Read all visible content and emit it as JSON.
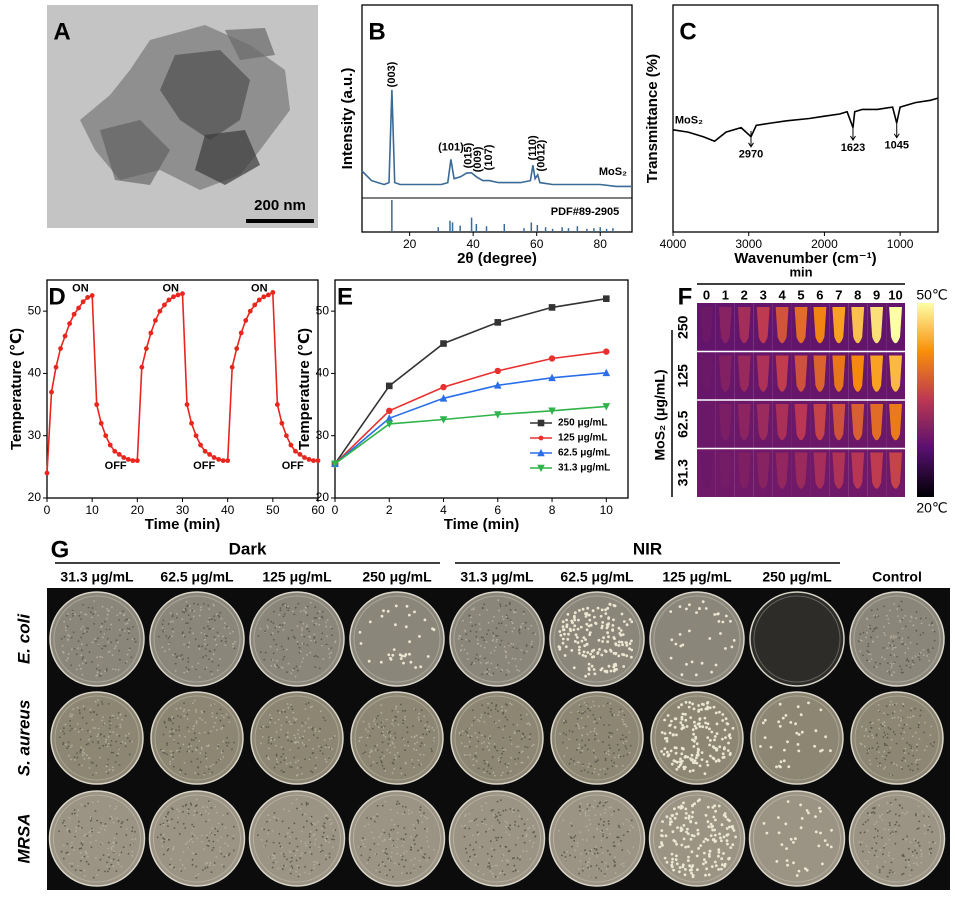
{
  "panel_labels": [
    "A",
    "B",
    "C",
    "D",
    "E",
    "F",
    "G"
  ],
  "panel_a": {
    "scale_bar": "200 nm"
  },
  "chart_data": [
    {
      "type": "line",
      "x_label": "2θ (degree)",
      "y_label": "Intensity (a.u.)",
      "xlim": [
        5,
        90
      ],
      "ylim": [
        0,
        100
      ],
      "xticks": [
        20,
        40,
        60,
        80
      ],
      "color": "#3a6a96",
      "x": [
        5,
        8,
        10,
        12,
        13.5,
        14.4,
        15.3,
        17,
        20,
        25,
        30,
        32,
        33,
        34,
        36,
        38,
        39.5,
        41,
        43,
        45,
        48,
        50,
        55,
        58,
        58.8,
        59.5,
        60.3,
        61,
        65,
        70,
        75,
        80,
        85,
        90
      ],
      "values": [
        14,
        9,
        8,
        7,
        8,
        56,
        8,
        7,
        7,
        7,
        7,
        8,
        20,
        10,
        11,
        13,
        13,
        11,
        9,
        9,
        8,
        8,
        8,
        9,
        17,
        10,
        12,
        8,
        7,
        7,
        7,
        7,
        6,
        6
      ],
      "annotations": [
        {
          "text": "(003)",
          "x": 14.4,
          "y": 64,
          "vertical": true
        },
        {
          "text": "(101)",
          "x": 33,
          "y": 26,
          "vertical": false
        },
        {
          "text": "(015)",
          "x": 38.5,
          "y": 22,
          "vertical": true
        },
        {
          "text": "(009)",
          "x": 41.5,
          "y": 20,
          "vertical": true
        },
        {
          "text": "(107)",
          "x": 45,
          "y": 21,
          "vertical": true
        },
        {
          "text": "(110)",
          "x": 58.8,
          "y": 26,
          "vertical": true
        },
        {
          "text": "(0012)",
          "x": 61.5,
          "y": 22,
          "vertical": true
        },
        {
          "text": "MoS₂",
          "x": 84,
          "y": 13.5,
          "vertical": false
        }
      ],
      "reference": {
        "name": "PDF#89-2905",
        "color": "#3a6a96",
        "x": [
          14.4,
          29,
          32.7,
          33.5,
          35.9,
          39.5,
          41,
          44.2,
          49.8,
          56,
          58.3,
          60.2,
          62.8,
          65,
          68,
          70,
          72.8,
          75.8,
          78,
          80,
          82,
          84
        ],
        "values": [
          100,
          15,
          35,
          30,
          20,
          45,
          25,
          18,
          25,
          12,
          30,
          22,
          15,
          10,
          15,
          12,
          18,
          10,
          12,
          15,
          10,
          12
        ]
      }
    },
    {
      "type": "line",
      "x_label": "Wavenumber (cm⁻¹)",
      "y_label": "Transmittance (%)",
      "xlim": [
        4000,
        500
      ],
      "ylim": [
        0,
        100
      ],
      "xticks": [
        4000,
        3000,
        2000,
        1000
      ],
      "color": "#000000",
      "x": [
        4000,
        3800,
        3600,
        3450,
        3300,
        3100,
        2970,
        2900,
        2700,
        2500,
        2200,
        2000,
        1800,
        1700,
        1623,
        1600,
        1500,
        1300,
        1100,
        1045,
        1000,
        800,
        600,
        500
      ],
      "values": [
        45,
        44,
        42,
        40,
        44,
        46,
        42,
        47,
        48,
        49,
        50,
        51,
        52,
        53,
        46,
        53,
        54,
        54,
        55,
        48,
        55,
        57,
        58,
        59
      ],
      "annotations": [
        {
          "text": "MoS₂",
          "x": 3790,
          "y": 49,
          "arrow": false
        },
        {
          "text": "2970",
          "x": 2970,
          "y": 34,
          "arrow": true
        },
        {
          "text": "1623",
          "x": 1623,
          "y": 37,
          "arrow": true
        },
        {
          "text": "1045",
          "x": 1045,
          "y": 38,
          "arrow": true
        }
      ]
    },
    {
      "type": "line",
      "x_label": "Time (min)",
      "y_label": "Temperature (℃)",
      "xlim": [
        0,
        60
      ],
      "ylim": [
        20,
        55
      ],
      "xticks": [
        0,
        10,
        20,
        30,
        40,
        50,
        60
      ],
      "yticks": [
        20,
        30,
        40,
        50
      ],
      "color": "#e8261e",
      "marker": "circle",
      "x": [
        0,
        1,
        2,
        3,
        4,
        5,
        6,
        7,
        8,
        9,
        10,
        11,
        12,
        13,
        14,
        15,
        16,
        17,
        18,
        19,
        20,
        21,
        22,
        23,
        24,
        25,
        26,
        27,
        28,
        29,
        30,
        31,
        32,
        33,
        34,
        35,
        36,
        37,
        38,
        39,
        40,
        41,
        42,
        43,
        44,
        45,
        46,
        47,
        48,
        49,
        50,
        51,
        52,
        53,
        54,
        55,
        56,
        57,
        58,
        59,
        60
      ],
      "values": [
        24,
        37,
        41,
        44,
        46,
        48,
        49.5,
        50.5,
        51.5,
        52.2,
        52.5,
        35,
        32,
        30,
        28.5,
        27.5,
        27,
        26.5,
        26.2,
        26,
        26,
        41,
        44,
        46.5,
        48.5,
        50,
        51,
        51.8,
        52.3,
        52.6,
        52.8,
        35,
        32,
        30,
        28.5,
        27.5,
        27,
        26.5,
        26.2,
        26,
        26,
        41,
        44,
        46.5,
        48.5,
        50,
        51,
        51.8,
        52.3,
        52.6,
        53,
        35,
        32,
        30,
        28.5,
        27.5,
        27,
        26.5,
        26.2,
        26,
        26
      ],
      "annotations": [
        {
          "text": "ON",
          "x": 7.4,
          "y": 53.6
        },
        {
          "text": "ON",
          "x": 27.4,
          "y": 53.6
        },
        {
          "text": "ON",
          "x": 47,
          "y": 53.6
        },
        {
          "text": "OFF",
          "x": 15.2,
          "y": 25.1
        },
        {
          "text": "OFF",
          "x": 34.8,
          "y": 25.1
        },
        {
          "text": "OFF",
          "x": 54.4,
          "y": 25.1
        }
      ]
    },
    {
      "type": "line",
      "x_label": "Time (min)",
      "y_label": "Temperature (℃)",
      "xlim": [
        0,
        10.8
      ],
      "ylim": [
        20,
        55
      ],
      "xticks": [
        0,
        2,
        4,
        6,
        8,
        10
      ],
      "yticks": [
        20,
        30,
        40,
        50
      ],
      "legend": "lower right",
      "x": [
        0,
        2,
        4,
        6,
        8,
        10
      ],
      "series": [
        {
          "name": "250 μg/mL",
          "color": "#333333",
          "marker": "square",
          "values": [
            25.5,
            38,
            44.8,
            48.2,
            50.6,
            52
          ]
        },
        {
          "name": "125 μg/mL",
          "color": "#e8312f",
          "marker": "circle",
          "values": [
            25.5,
            34,
            37.8,
            40.4,
            42.4,
            43.5
          ]
        },
        {
          "name": "62.5 μg/mL",
          "color": "#2a6ee8",
          "marker": "triangle-up",
          "values": [
            25.5,
            32.8,
            36,
            38.1,
            39.3,
            40.1
          ]
        },
        {
          "name": "31.3 μg/mL",
          "color": "#2fb34a",
          "marker": "triangle-down",
          "values": [
            25.5,
            31.9,
            32.6,
            33.4,
            34,
            34.7
          ]
        }
      ]
    }
  ],
  "panel_f": {
    "title": "min",
    "columns": [
      "0",
      "1",
      "2",
      "3",
      "4",
      "5",
      "6",
      "7",
      "8",
      "9",
      "10"
    ],
    "rows": [
      "250",
      "125",
      "62.5",
      "31.3"
    ],
    "row_axis_label": "MoS₂ (μg/mL)",
    "colorbar": {
      "max_label": "50℃",
      "min_label": "20℃"
    }
  },
  "panel_g": {
    "groups": [
      "Dark",
      "NIR"
    ],
    "columns": [
      "31.3 μg/mL",
      "62.5 μg/mL",
      "125 μg/mL",
      "250 μg/mL",
      "31.3 μg/mL",
      "62.5 μg/mL",
      "125 μg/mL",
      "250 μg/mL",
      "Control"
    ],
    "rows": [
      "E. coli",
      "S. aureus",
      "MRSA"
    ]
  }
}
